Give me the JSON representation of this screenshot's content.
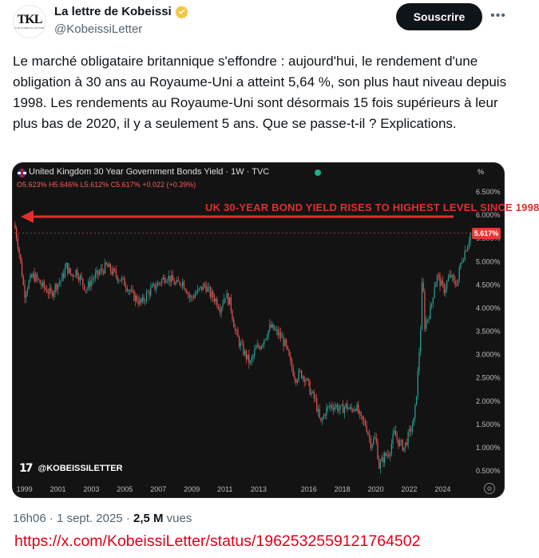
{
  "account": {
    "avatar_monogram": "TKL",
    "avatar_subtext": "THE KOBEISSI LETTER",
    "name": "La lettre de Kobeissi",
    "handle": "@KobeissiLetter",
    "follow_label": "Souscrire",
    "more_icon": "more-dots-icon",
    "verified_color": "#f4c542"
  },
  "tweet": {
    "text": "Le marché obligataire britannique s'effondre : aujourd'hui, le rendement d'une obligation à 30 ans au Royaume-Uni a atteint 5,64 %, son plus haut niveau depuis 1998. Les rendements au Royaume-Uni sont désormais 15 fois supérieurs à leur plus bas de 2020, il y a seulement 5 ans. Que se passe-t-il ? Explications.",
    "time": "16h06",
    "date": "1 sept. 2025",
    "views_count": "2,5 M",
    "views_label": "vues",
    "source_url": "https://x.com/KobeissiLetter/status/1962532559121764502"
  },
  "chart_data": {
    "type": "line",
    "title": "United Kingdom 30 Year Government Bonds Yield · 1W · TVC",
    "ohlc": {
      "o": "O5.623%",
      "h": "H5.646%",
      "l": "L5.612%",
      "c": "C5.617%",
      "change": "+0.022 (+0.39%)"
    },
    "headline": "UK 30-YEAR BOND YIELD RISES TO HIGHEST LEVEL SINCE 1998",
    "last_price_label": "5.617%",
    "last_price": 5.617,
    "brand": "@KOBEISSILETTER",
    "y_unit_label": "%",
    "ylim": [
      0.2,
      6.8
    ],
    "y_ticks": [
      "6.500%",
      "6.000%",
      "5.500%",
      "5.000%",
      "4.500%",
      "4.000%",
      "3.500%",
      "3.000%",
      "2.500%",
      "2.000%",
      "1.500%",
      "1.000%",
      "0.500%"
    ],
    "y_tick_values": [
      6.5,
      6.0,
      5.5,
      5.0,
      4.5,
      4.0,
      3.5,
      3.0,
      2.5,
      2.0,
      1.5,
      1.0,
      0.5
    ],
    "x_ticks": [
      "1999",
      "2001",
      "2003",
      "2005",
      "2007",
      "2009",
      "2011",
      "2013",
      "2016",
      "2018",
      "2020",
      "2022",
      "2024"
    ],
    "x_tick_values": [
      1999,
      2001,
      2003,
      2005,
      2007,
      2009,
      2011,
      2013,
      2016,
      2018,
      2020,
      2022,
      2024
    ],
    "xlim": [
      1998.4,
      2025.7
    ],
    "series": [
      {
        "x": [
          1998.4,
          1998.6,
          1998.8,
          1999.0,
          1999.2,
          1999.5,
          1999.8,
          2000.0,
          2000.3,
          2000.6,
          2000.9,
          2001.2,
          2001.5,
          2001.8,
          2002.1,
          2002.4,
          2002.7,
          2003.0,
          2003.3,
          2003.6,
          2003.9,
          2004.2,
          2004.5,
          2004.8,
          2005.1,
          2005.4,
          2005.7,
          2006.0,
          2006.3,
          2006.6,
          2006.9,
          2007.2,
          2007.5,
          2007.8,
          2008.1,
          2008.4,
          2008.7,
          2008.9,
          2009.2,
          2009.5,
          2009.8,
          2010.1,
          2010.4,
          2010.7,
          2011.0,
          2011.3,
          2011.6,
          2011.9,
          2012.2,
          2012.5,
          2012.8,
          2013.1,
          2013.4,
          2013.7,
          2014.0,
          2014.3,
          2014.6,
          2014.9,
          2015.2,
          2015.5,
          2015.8,
          2016.1,
          2016.4,
          2016.7,
          2017.0,
          2017.3,
          2017.6,
          2017.9,
          2018.2,
          2018.5,
          2018.8,
          2019.1,
          2019.4,
          2019.7,
          2020.0,
          2020.2,
          2020.5,
          2020.8,
          2021.1,
          2021.4,
          2021.7,
          2022.0,
          2022.3,
          2022.5,
          2022.7,
          2022.8,
          2022.9,
          2023.1,
          2023.3,
          2023.5,
          2023.7,
          2023.9,
          2024.1,
          2024.3,
          2024.5,
          2024.7,
          2024.9,
          2025.1,
          2025.3,
          2025.5,
          2025.67
        ],
        "y": [
          5.8,
          5.4,
          4.9,
          4.3,
          4.5,
          4.7,
          4.6,
          4.5,
          4.4,
          4.3,
          4.5,
          4.6,
          4.9,
          4.7,
          4.8,
          4.6,
          4.4,
          4.6,
          4.7,
          4.8,
          4.9,
          4.8,
          4.7,
          4.6,
          4.5,
          4.3,
          4.2,
          4.1,
          4.3,
          4.4,
          4.5,
          4.6,
          4.7,
          4.6,
          4.5,
          4.6,
          4.4,
          4.2,
          4.3,
          4.4,
          4.5,
          4.3,
          4.2,
          4.0,
          4.3,
          4.1,
          3.5,
          3.2,
          3.0,
          2.8,
          3.1,
          3.2,
          3.4,
          3.6,
          3.5,
          3.4,
          3.2,
          2.8,
          2.5,
          2.6,
          2.5,
          2.2,
          2.0,
          1.5,
          1.8,
          1.9,
          1.9,
          1.8,
          1.9,
          1.8,
          1.9,
          1.6,
          1.5,
          1.1,
          1.2,
          0.6,
          0.8,
          0.9,
          1.3,
          1.1,
          1.0,
          1.3,
          1.6,
          2.5,
          3.7,
          4.9,
          3.6,
          3.8,
          4.0,
          4.5,
          4.7,
          4.5,
          4.4,
          4.6,
          4.7,
          4.5,
          4.6,
          5.0,
          5.2,
          5.4,
          5.62
        ]
      }
    ],
    "colors": {
      "up": "#26a69a",
      "down": "#ef5350",
      "arrow": "#e22e2e",
      "background": "#131313"
    }
  }
}
